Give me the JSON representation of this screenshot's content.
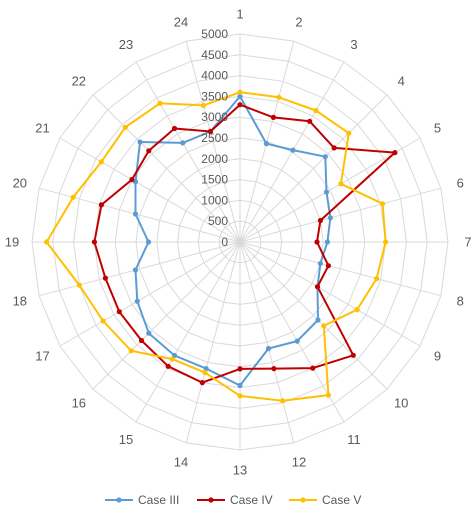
{
  "chart_data": {
    "type": "radar",
    "title": "",
    "categories": [
      "1",
      "2",
      "3",
      "4",
      "5",
      "6",
      "7",
      "8",
      "9",
      "10",
      "11",
      "12",
      "13",
      "14",
      "15",
      "16",
      "17",
      "18",
      "19",
      "20",
      "21",
      "22",
      "23",
      "24"
    ],
    "rlim": [
      0,
      5000
    ],
    "ticks": [
      0,
      500,
      1000,
      1500,
      2000,
      2500,
      3000,
      3500,
      4000,
      4500,
      5000
    ],
    "grid": true,
    "legend": "bottom",
    "series": [
      {
        "name": "Case III",
        "color": "#5b9bd5",
        "values": [
          3500,
          2450,
          2550,
          2900,
          2400,
          2250,
          2100,
          2000,
          2150,
          2650,
          2750,
          2650,
          3450,
          3150,
          3150,
          3100,
          2850,
          2600,
          2200,
          2600,
          2900,
          3400,
          2750,
          2750
        ]
      },
      {
        "name": "Case IV",
        "color": "#c00000",
        "values": [
          3300,
          3100,
          3350,
          3200,
          4300,
          2000,
          1850,
          2200,
          2150,
          3850,
          3500,
          3150,
          3050,
          3500,
          3450,
          3350,
          3350,
          3350,
          3500,
          3450,
          3000,
          3100,
          3150,
          2750
        ]
      },
      {
        "name": "Case V",
        "color": "#ffc000",
        "values": [
          3600,
          3600,
          3650,
          3700,
          2800,
          3550,
          3500,
          3400,
          3250,
          2850,
          4250,
          3950,
          3700,
          3250,
          3250,
          3700,
          3800,
          4000,
          4650,
          4150,
          3850,
          3900,
          3850,
          3400
        ]
      }
    ]
  }
}
